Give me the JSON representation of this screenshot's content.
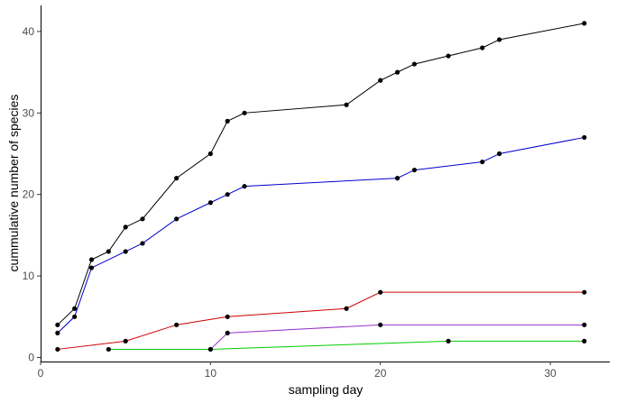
{
  "chart_data": {
    "type": "line",
    "title": "",
    "xlabel": "sampling day",
    "ylabel": "cummulative number of species",
    "xlim": [
      0,
      33.5
    ],
    "ylim": [
      -0.5,
      43.2
    ],
    "xticks": [
      0,
      10,
      20,
      30
    ],
    "yticks": [
      0,
      10,
      20,
      30,
      40
    ],
    "grid": false,
    "legend": "none",
    "point_color": "#000000",
    "series": [
      {
        "color": "#000000",
        "x": [
          1,
          2,
          3,
          4,
          5,
          6,
          8,
          10,
          11,
          12,
          18,
          20,
          21,
          22,
          24,
          26,
          27,
          32
        ],
        "y": [
          4,
          6,
          12,
          13,
          16,
          17,
          22,
          25,
          29,
          30,
          31,
          34,
          35,
          36,
          37,
          38,
          39,
          41
        ]
      },
      {
        "color": "#0000cd",
        "x": [
          1,
          2,
          3,
          5,
          6,
          8,
          10,
          11,
          12,
          21,
          22,
          26,
          27,
          32
        ],
        "y": [
          3,
          5,
          11,
          13,
          14,
          17,
          19,
          20,
          21,
          22,
          23,
          24,
          25,
          27
        ]
      },
      {
        "color": "#cd0000",
        "x": [
          1,
          5,
          8,
          11,
          18,
          20,
          32
        ],
        "y": [
          1,
          2,
          4,
          5,
          6,
          8,
          8
        ]
      },
      {
        "color": "#9a32cd",
        "x": [
          10,
          11,
          20,
          32
        ],
        "y": [
          1,
          3,
          4,
          4
        ]
      },
      {
        "color": "#00cd00",
        "x": [
          4,
          10,
          24,
          32
        ],
        "y": [
          1,
          1,
          2,
          2
        ]
      }
    ]
  }
}
